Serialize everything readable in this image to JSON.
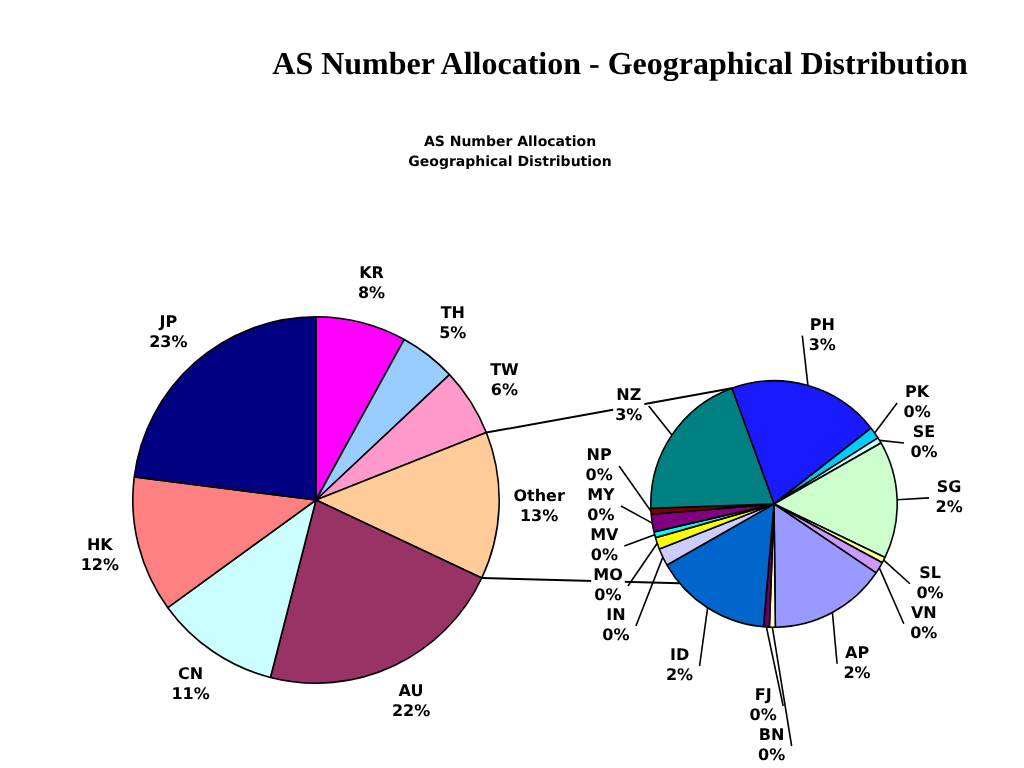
{
  "chart_data": [
    {
      "type": "pie",
      "title": "AS Number Allocation - Geographical Distribution",
      "subtitle": "AS Number Allocation\nGeographical Distribution",
      "categories": [
        "KR",
        "TH",
        "TW",
        "Other",
        "AU",
        "CN",
        "HK",
        "JP"
      ],
      "values": [
        8,
        5,
        6,
        13,
        22,
        11,
        12,
        23
      ],
      "value_labels": [
        "8%",
        "5%",
        "6%",
        "13%",
        "22%",
        "11%",
        "12%",
        "23%"
      ],
      "colors": [
        "#ff00ff",
        "#99ccff",
        "#ff99cc",
        "#ffcc99",
        "#993366",
        "#ccffff",
        "#ff8080",
        "#000080"
      ]
    },
    {
      "type": "pie",
      "categories": [
        "PH",
        "PK",
        "SE",
        "SG",
        "SL",
        "VN",
        "AP",
        "BN",
        "FJ",
        "ID",
        "IN",
        "MO",
        "MV",
        "MY",
        "NP",
        "NZ"
      ],
      "values": [
        2.6,
        0.2,
        0.1,
        2.0,
        0.1,
        0.2,
        2.0,
        0.1,
        0.1,
        2.0,
        0.3,
        0.2,
        0.1,
        0.3,
        0.1,
        2.6
      ],
      "value_labels": [
        "3%",
        "0%",
        "0%",
        "2%",
        "0%",
        "0%",
        "2%",
        "0%",
        "0%",
        "2%",
        "0%",
        "0%",
        "0%",
        "0%",
        "0%",
        "3%"
      ],
      "colors": [
        "#1a1aff",
        "#00ccff",
        "#ccffff",
        "#ccffcc",
        "#ffff99",
        "#cc99ff",
        "#9999ff",
        "#ffffcc",
        "#660066",
        "#0066cc",
        "#ccccff",
        "#ffff00",
        "#00ffff",
        "#800080",
        "#800000",
        "#008080"
      ]
    }
  ]
}
